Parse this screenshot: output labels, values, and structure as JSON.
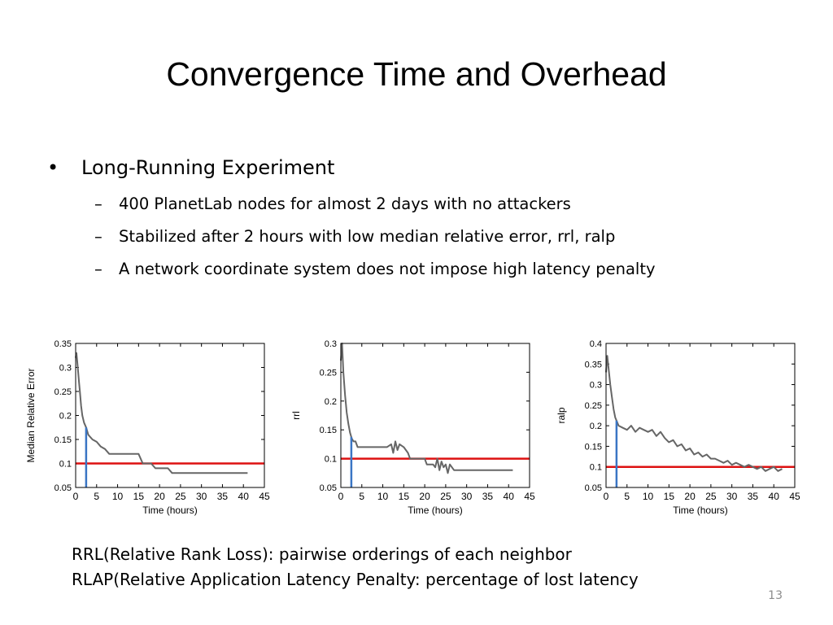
{
  "slide": {
    "title": "Convergence Time and Overhead",
    "bullets": [
      {
        "text": "Long-Running Experiment",
        "sub": [
          "400 PlanetLab nodes for almost 2 days with no attackers",
          "Stabilized after 2 hours with low median relative error, rrl, ralp",
          "A network coordinate system does not impose high latency penalty"
        ]
      }
    ],
    "notes": [
      "RRL(Relative Rank Loss): pairwise orderings of each neighbor",
      "RLAP(Relative Application Latency Penalty: percentage of lost latency"
    ],
    "page_number": "13"
  },
  "colors": {
    "data_line": "#666666",
    "threshold_line": "#dd1111",
    "marker_line": "#3a75c4"
  },
  "chart_data": [
    {
      "type": "line",
      "xlabel": "Time (hours)",
      "ylabel": "Median Relative Error",
      "xlim": [
        0,
        45
      ],
      "ylim": [
        0.05,
        0.35
      ],
      "xticks": [
        0,
        5,
        10,
        15,
        20,
        25,
        30,
        35,
        40,
        45
      ],
      "yticks": [
        0.05,
        0.1,
        0.15,
        0.2,
        0.25,
        0.3,
        0.35
      ],
      "ytick_labels": [
        "0.05",
        "0.1",
        "0.15",
        "0.2",
        "0.25",
        "0.3",
        "0.35"
      ],
      "threshold": 0.1,
      "marker_x": 2.5,
      "series": [
        {
          "x": [
            0,
            0.2,
            0.5,
            0.8,
            1.0,
            1.3,
            1.6,
            2.0,
            2.5,
            3.0,
            3.5,
            4.0,
            5.0,
            6.0,
            7.0,
            8.0,
            10.0,
            12.0,
            15.0,
            16.0,
            18.0,
            19.0,
            22.0,
            23.0,
            41.0
          ],
          "y": [
            0.32,
            0.33,
            0.3,
            0.27,
            0.25,
            0.22,
            0.2,
            0.185,
            0.175,
            0.16,
            0.155,
            0.15,
            0.145,
            0.135,
            0.13,
            0.12,
            0.12,
            0.12,
            0.12,
            0.1,
            0.1,
            0.09,
            0.09,
            0.08,
            0.08
          ]
        }
      ]
    },
    {
      "type": "line",
      "xlabel": "Time (hours)",
      "ylabel": "rrl",
      "xlim": [
        0,
        45
      ],
      "ylim": [
        0.05,
        0.3
      ],
      "xticks": [
        0,
        5,
        10,
        15,
        20,
        25,
        30,
        35,
        40,
        45
      ],
      "yticks": [
        0.05,
        0.1,
        0.15,
        0.2,
        0.25,
        0.3
      ],
      "ytick_labels": [
        "0.05",
        "0.1",
        "0.15",
        "0.2",
        "0.25",
        "0.3"
      ],
      "threshold": 0.1,
      "marker_x": 2.5,
      "series": [
        {
          "x": [
            0,
            0.3,
            0.6,
            1.0,
            1.4,
            1.8,
            2.2,
            2.6,
            3.0,
            3.5,
            4.0,
            5.0,
            7.0,
            9.0,
            10.0,
            11.0,
            12.0,
            12.5,
            13.0,
            13.5,
            14.0,
            15.0,
            16.0,
            16.5,
            17.0,
            18.0,
            19.0,
            20.0,
            20.5,
            21.0,
            22.0,
            22.5,
            23.0,
            23.5,
            24.0,
            24.5,
            25.0,
            25.5,
            26.0,
            27.0,
            30.0,
            35.0,
            41.0
          ],
          "y": [
            0.27,
            0.3,
            0.25,
            0.21,
            0.18,
            0.16,
            0.145,
            0.135,
            0.13,
            0.13,
            0.12,
            0.12,
            0.12,
            0.12,
            0.12,
            0.12,
            0.125,
            0.11,
            0.13,
            0.115,
            0.125,
            0.12,
            0.11,
            0.1,
            0.1,
            0.1,
            0.1,
            0.1,
            0.09,
            0.09,
            0.09,
            0.085,
            0.1,
            0.08,
            0.095,
            0.085,
            0.09,
            0.075,
            0.09,
            0.08,
            0.08,
            0.08,
            0.08
          ]
        }
      ]
    },
    {
      "type": "line",
      "xlabel": "Time (hours)",
      "ylabel": "ralp",
      "xlim": [
        0,
        45
      ],
      "ylim": [
        0.05,
        0.4
      ],
      "xticks": [
        0,
        5,
        10,
        15,
        20,
        25,
        30,
        35,
        40,
        45
      ],
      "yticks": [
        0.05,
        0.1,
        0.15,
        0.2,
        0.25,
        0.3,
        0.35,
        0.4
      ],
      "ytick_labels": [
        "0.05",
        "0.1",
        "0.15",
        "0.2",
        "0.25",
        "0.3",
        "0.35",
        "0.4"
      ],
      "threshold": 0.1,
      "marker_x": 2.5,
      "series": [
        {
          "x": [
            0,
            0.3,
            0.6,
            1.0,
            1.4,
            1.8,
            2.2,
            2.6,
            3.0,
            4.0,
            5.0,
            6.0,
            7.0,
            8.0,
            9.0,
            10.0,
            11.0,
            12.0,
            13.0,
            14.0,
            15.0,
            16.0,
            17.0,
            18.0,
            19.0,
            20.0,
            21.0,
            22.0,
            23.0,
            24.0,
            25.0,
            26.0,
            27.0,
            28.0,
            29.0,
            30.0,
            31.0,
            32.0,
            33.0,
            34.0,
            35.0,
            36.0,
            37.0,
            38.0,
            39.0,
            40.0,
            41.0,
            42.0
          ],
          "y": [
            0.33,
            0.37,
            0.34,
            0.3,
            0.27,
            0.24,
            0.22,
            0.21,
            0.2,
            0.195,
            0.19,
            0.2,
            0.185,
            0.195,
            0.19,
            0.185,
            0.19,
            0.175,
            0.185,
            0.17,
            0.16,
            0.165,
            0.15,
            0.155,
            0.14,
            0.145,
            0.13,
            0.135,
            0.125,
            0.13,
            0.12,
            0.12,
            0.115,
            0.11,
            0.115,
            0.105,
            0.11,
            0.105,
            0.1,
            0.105,
            0.1,
            0.095,
            0.1,
            0.09,
            0.095,
            0.1,
            0.09,
            0.095
          ]
        }
      ]
    }
  ]
}
